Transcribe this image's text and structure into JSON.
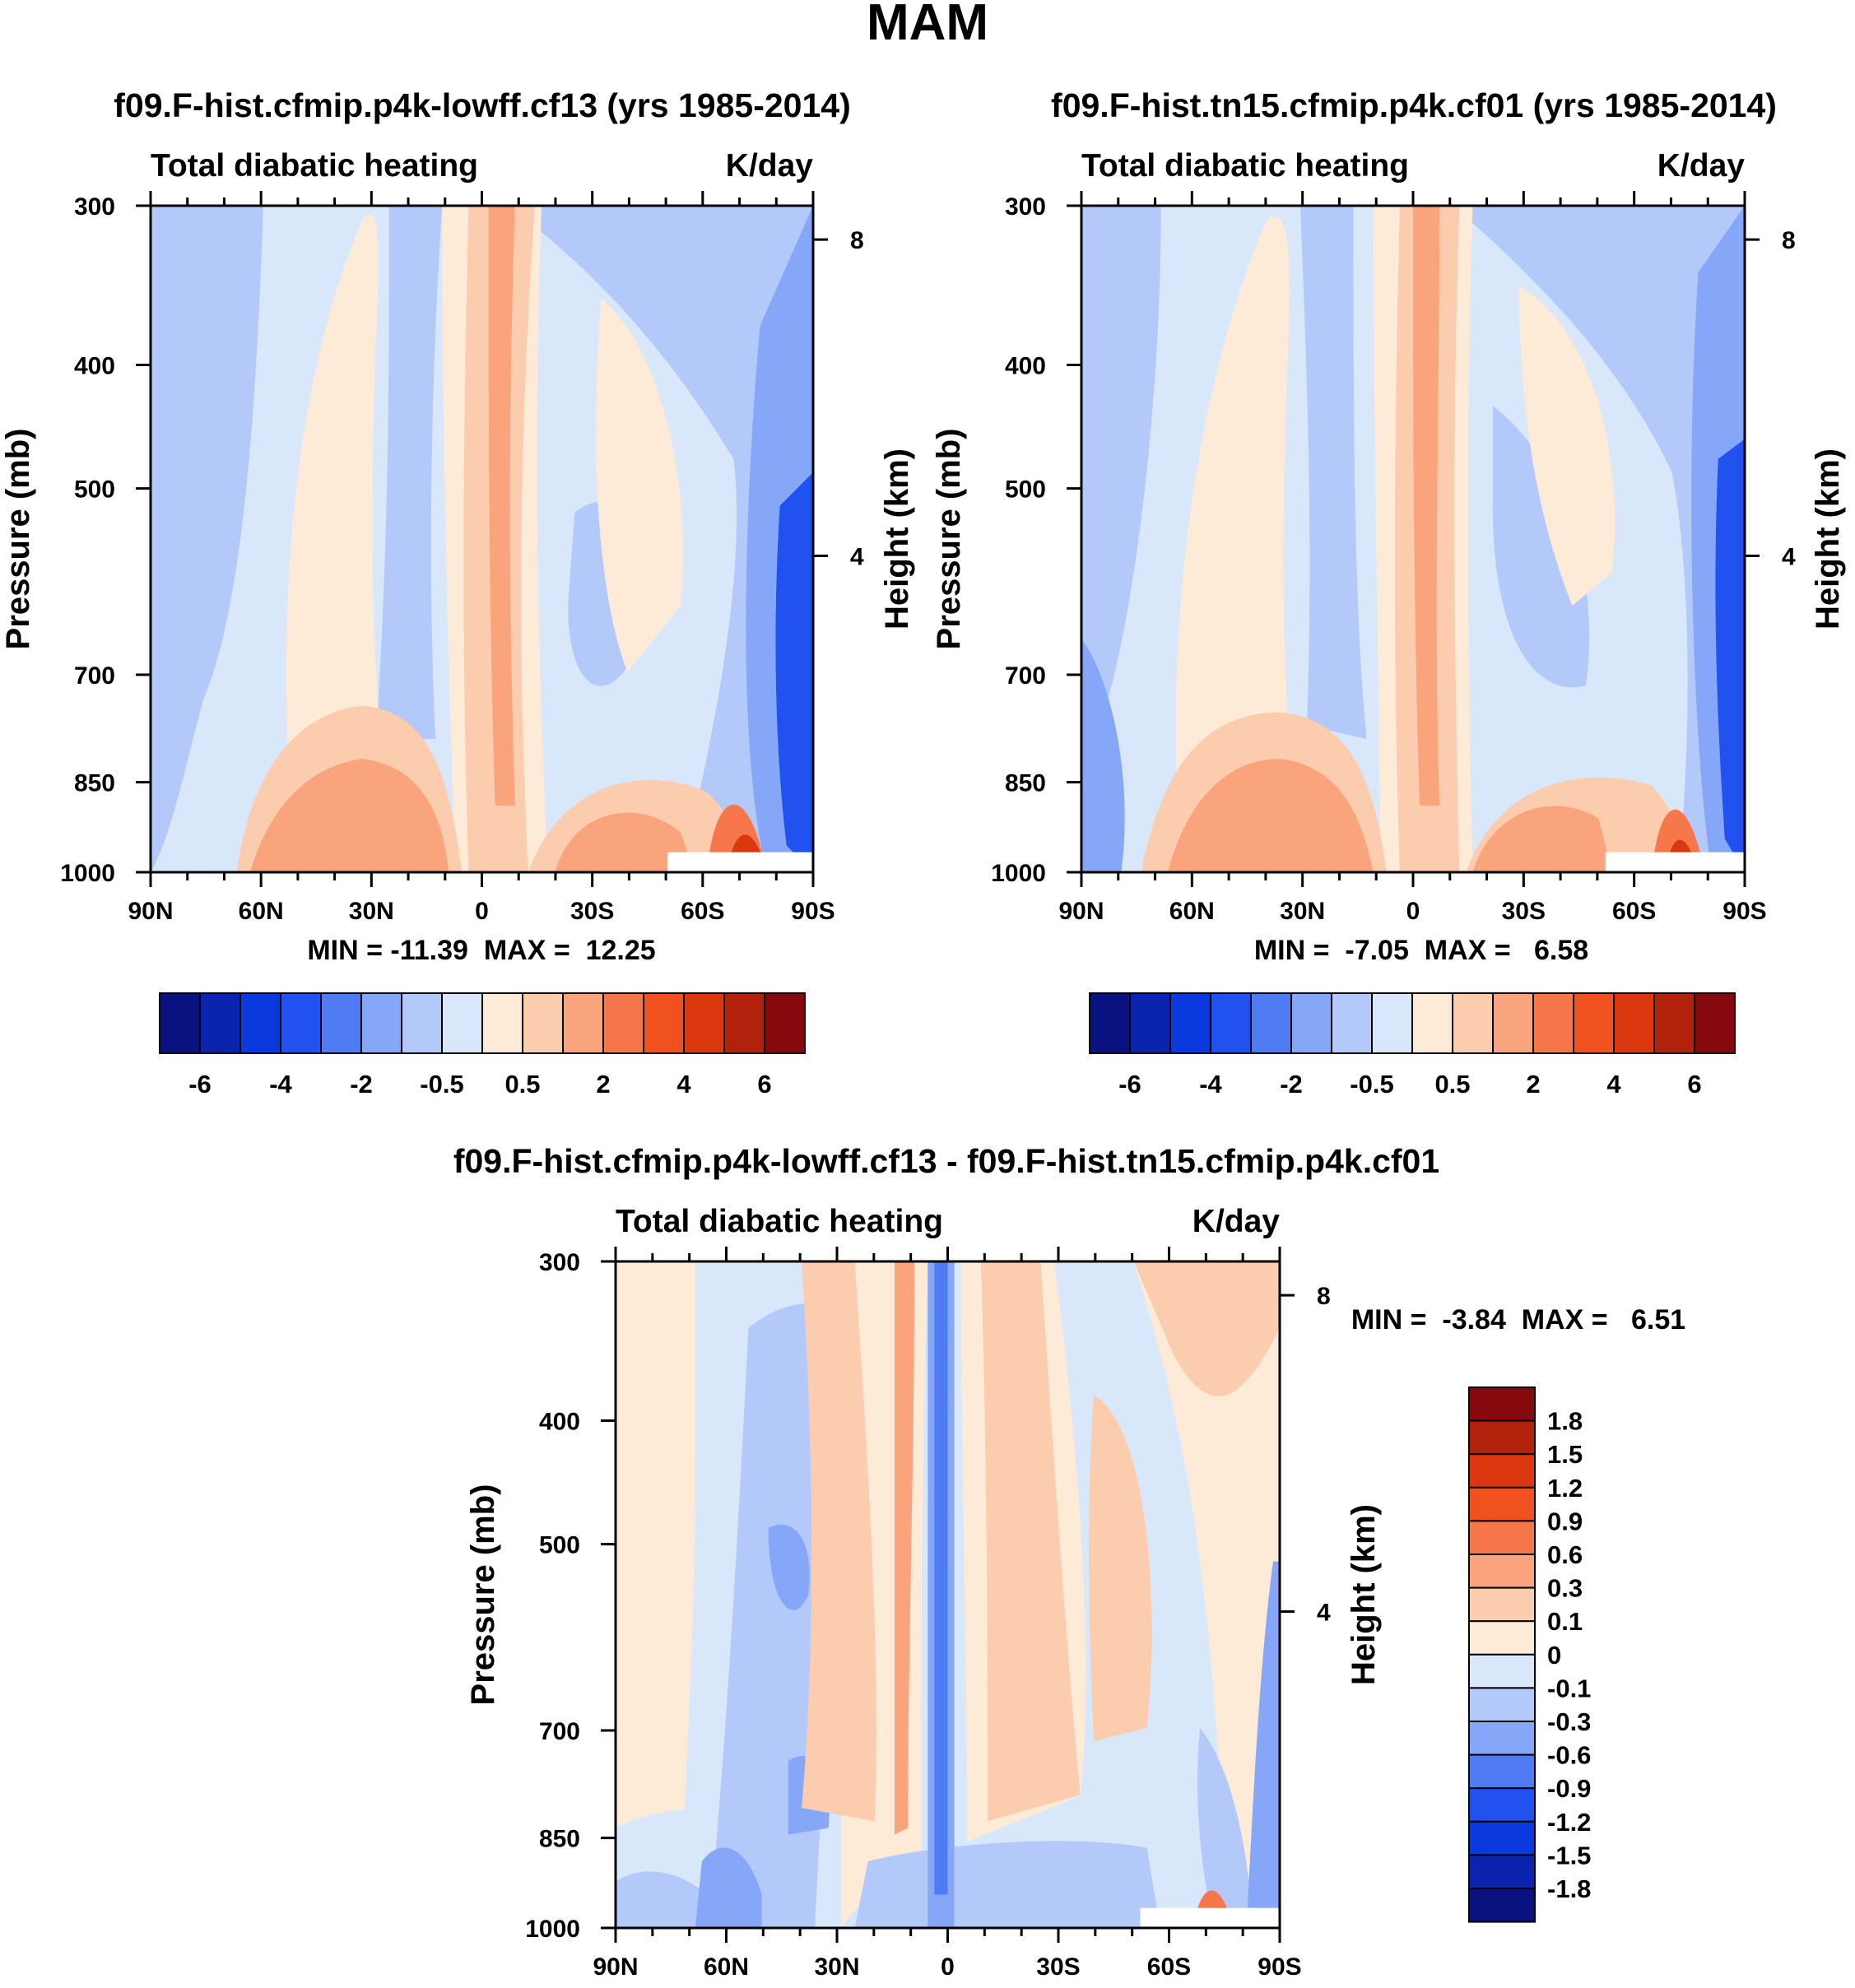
{
  "figure": {
    "title": "MAM"
  },
  "palettes": {
    "full": [
      "#0a1180",
      "#0a24b0",
      "#0a3ade",
      "#2152f0",
      "#4f7bf5",
      "#86a6f7",
      "#b3c9f9",
      "#d9e7fb",
      "#fdebd8",
      "#fcccae",
      "#f9a47c",
      "#f6774c",
      "#f1511f",
      "#dc3810",
      "#b2210b",
      "#86090d"
    ],
    "diff": [
      "#0a1180",
      "#0a24b0",
      "#0a3ade",
      "#2152f0",
      "#4f7bf5",
      "#86a6f7",
      "#b3c9f9",
      "#d9e7fb",
      "#fdebd8",
      "#fcccae",
      "#f9a47c",
      "#f6774c",
      "#f1511f",
      "#dc3810",
      "#b2210b",
      "#86090d"
    ]
  },
  "chart_data": [
    {
      "type": "heatmap",
      "title": "f09.F-hist.cfmip.p4k-lowff.cf13 (yrs 1985-2014)",
      "left_label": "Total diabatic heating",
      "right_label": "K/day",
      "ylabel": "Pressure (mb)",
      "y2label": "Height (km)",
      "x_ticklabels": [
        "90N",
        "60N",
        "30N",
        "0",
        "30S",
        "60S",
        "90S"
      ],
      "y_ticklabels": [
        "300",
        "400",
        "500",
        "700",
        "850",
        "1000"
      ],
      "y2_ticklabels": [
        "8",
        "4"
      ],
      "stats": "MIN = -11.39  MAX =  12.25",
      "colorbar_ticklabels": [
        "-6",
        "-4",
        "-2",
        "-0.5",
        "0.5",
        "2",
        "4",
        "6"
      ],
      "levels": [
        -6,
        -5,
        -4,
        -3,
        -2,
        -1,
        -0.5,
        0,
        0.5,
        1,
        2,
        3,
        4,
        5,
        6
      ],
      "min": -11.39,
      "max": 12.25
    },
    {
      "type": "heatmap",
      "title": "f09.F-hist.tn15.cfmip.p4k.cf01 (yrs 1985-2014)",
      "left_label": "Total diabatic heating",
      "right_label": "K/day",
      "ylabel": "Pressure (mb)",
      "y2label": "Height (km)",
      "x_ticklabels": [
        "90N",
        "60N",
        "30N",
        "0",
        "30S",
        "60S",
        "90S"
      ],
      "y_ticklabels": [
        "300",
        "400",
        "500",
        "700",
        "850",
        "1000"
      ],
      "y2_ticklabels": [
        "8",
        "4"
      ],
      "stats": "MIN =  -7.05  MAX =   6.58",
      "colorbar_ticklabels": [
        "-6",
        "-4",
        "-2",
        "-0.5",
        "0.5",
        "2",
        "4",
        "6"
      ],
      "levels": [
        -6,
        -5,
        -4,
        -3,
        -2,
        -1,
        -0.5,
        0,
        0.5,
        1,
        2,
        3,
        4,
        5,
        6
      ],
      "min": -7.05,
      "max": 6.58
    },
    {
      "type": "heatmap",
      "title": "f09.F-hist.cfmip.p4k-lowff.cf13 - f09.F-hist.tn15.cfmip.p4k.cf01",
      "left_label": "Total diabatic heating",
      "right_label": "K/day",
      "ylabel": "Pressure (mb)",
      "y2label": "Height (km)",
      "x_ticklabels": [
        "90N",
        "60N",
        "30N",
        "0",
        "30S",
        "60S",
        "90S"
      ],
      "y_ticklabels": [
        "300",
        "400",
        "500",
        "700",
        "850",
        "1000"
      ],
      "y2_ticklabels": [
        "8",
        "4"
      ],
      "stats": "MIN =  -3.84  MAX =   6.51",
      "colorbar_ticklabels": [
        "1.8",
        "1.5",
        "1.2",
        "0.9",
        "0.6",
        "0.3",
        "0.1",
        "0",
        "-0.1",
        "-0.3",
        "-0.6",
        "-0.9",
        "-1.2",
        "-1.5",
        "-1.8"
      ],
      "levels": [
        -1.8,
        -1.5,
        -1.2,
        -0.9,
        -0.6,
        -0.3,
        -0.1,
        0,
        0.1,
        0.3,
        0.6,
        0.9,
        1.2,
        1.5,
        1.8
      ],
      "min": -3.84,
      "max": 6.51
    }
  ]
}
